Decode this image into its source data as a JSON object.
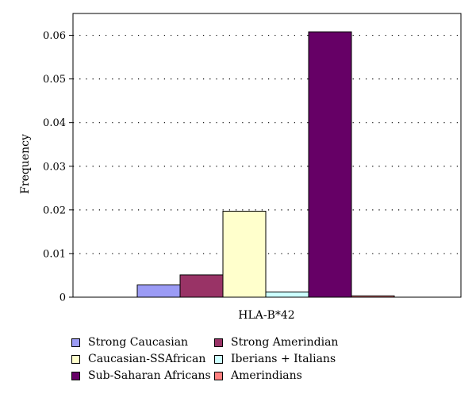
{
  "chart_data": {
    "type": "bar",
    "categories": [
      "HLA-B*42"
    ],
    "xlabel": "HLA-B*42",
    "ylabel": "Frequency",
    "ylim": [
      0,
      0.065
    ],
    "yticks": [
      "0",
      "0.01",
      "0.02",
      "0.03",
      "0.04",
      "0.05",
      "0.06"
    ],
    "grid": true,
    "legend_position": "bottom",
    "series": [
      {
        "name": "Strong Caucasian",
        "values": [
          0.0028
        ],
        "color": "#9b9bf5"
      },
      {
        "name": "Strong Amerindian",
        "values": [
          0.0051
        ],
        "color": "#993366"
      },
      {
        "name": "Caucasian-SSAfrican",
        "values": [
          0.0197
        ],
        "color": "#ffffcc"
      },
      {
        "name": "Iberians + Italians",
        "values": [
          0.0012
        ],
        "color": "#ccffff"
      },
      {
        "name": "Sub-Saharan Africans",
        "values": [
          0.0608
        ],
        "color": "#660066"
      },
      {
        "name": "Amerindians",
        "values": [
          0.0003
        ],
        "color": "#ff8080"
      }
    ]
  }
}
